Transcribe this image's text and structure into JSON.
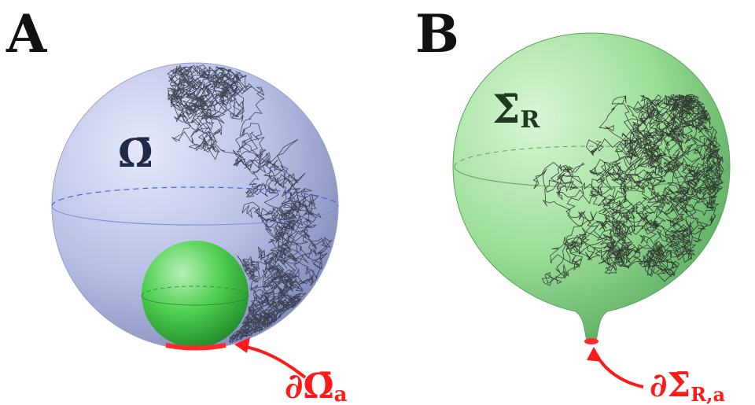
{
  "panels": [
    {
      "letter": "A",
      "region_symbol": "Ω̄",
      "boundary_symbol": "∂Ω̄",
      "boundary_subscript": "a",
      "colors": {
        "outer": "#aab3dc",
        "inner": "#43c443",
        "boundary": "#ff2a2a",
        "walk": "#333848"
      }
    },
    {
      "letter": "B",
      "region_symbol": "Σ̄",
      "region_subscript": "R",
      "boundary_symbol": "∂Σ̄",
      "boundary_subscript": "R,a",
      "colors": {
        "body": "#8fd68f",
        "boundary": "#ff2a2a",
        "walk": "#2a2a2a"
      }
    }
  ]
}
